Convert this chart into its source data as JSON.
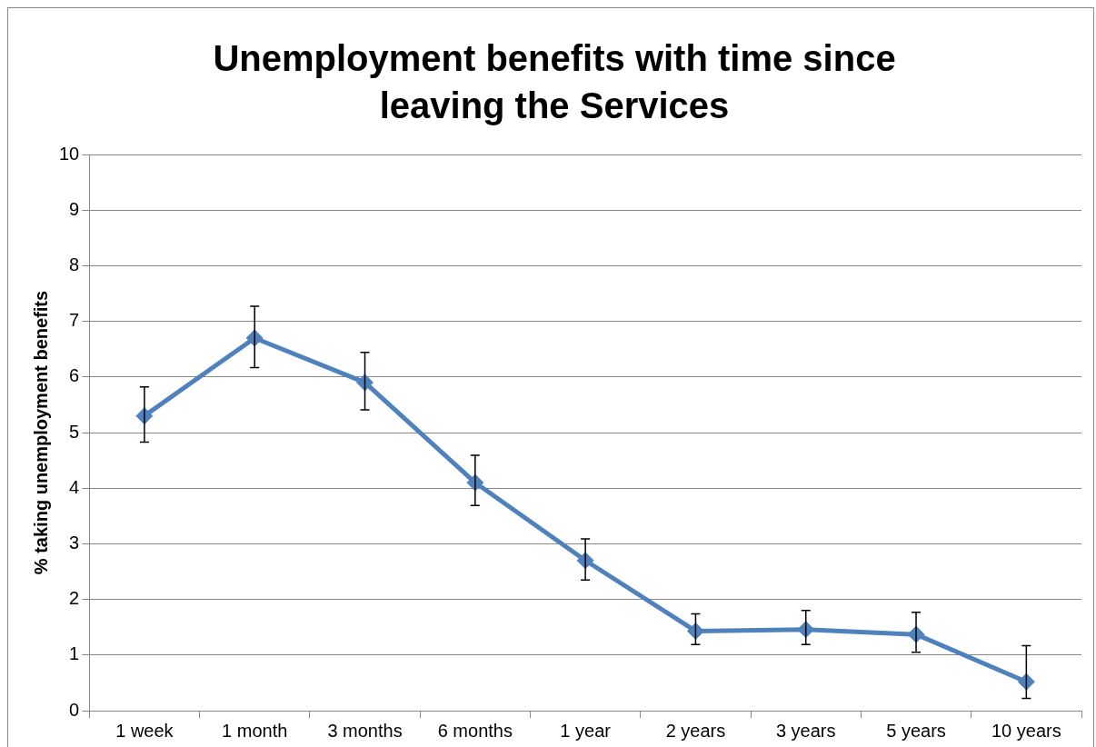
{
  "chart_data": {
    "type": "line",
    "title": "Unemployment benefits with time since leaving the Services",
    "ylabel": "% taking unemployment benefits",
    "categories": [
      "1 week",
      "1 month",
      "3 months",
      "6 months",
      "1 year",
      "2 years",
      "3 years",
      "5 years",
      "10 years"
    ],
    "series": [
      {
        "color": "#4f81bd",
        "values": [
          5.3,
          6.7,
          5.9,
          4.1,
          2.7,
          1.43,
          1.46,
          1.37,
          0.52
        ],
        "errors": [
          [
            4.83,
            5.82
          ],
          [
            6.17,
            7.27
          ],
          [
            5.41,
            6.44
          ],
          [
            3.69,
            4.59
          ],
          [
            2.35,
            3.09
          ],
          [
            1.19,
            1.74
          ],
          [
            1.19,
            1.8
          ],
          [
            1.05,
            1.77
          ],
          [
            0.22,
            1.17
          ]
        ]
      }
    ],
    "ylim": [
      0,
      10
    ],
    "yticks": [
      0,
      1,
      2,
      3,
      4,
      5,
      6,
      7,
      8,
      9,
      10
    ],
    "grid": "y",
    "legend": false,
    "marker": "diamond",
    "line_style": "solid"
  }
}
